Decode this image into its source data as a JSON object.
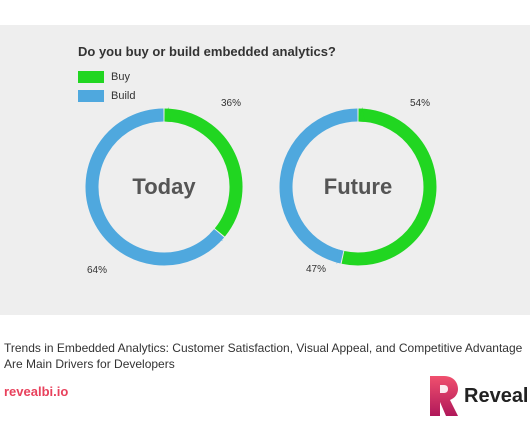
{
  "colors": {
    "buy": "#21d621",
    "build": "#4fa8de",
    "panel": "#eeeeee",
    "brand_accent": "#e8415c"
  },
  "chart_data": [
    {
      "type": "pie",
      "variant": "donut",
      "title": "Do you buy or build embedded analytics?",
      "center_label": "Today",
      "slices": [
        {
          "name": "Buy",
          "value": 36,
          "label": "36%"
        },
        {
          "name": "Build",
          "value": 64,
          "label": "64%"
        }
      ]
    },
    {
      "type": "pie",
      "variant": "donut",
      "title": "Do you buy or build embedded analytics?",
      "center_label": "Future",
      "slices": [
        {
          "name": "Buy",
          "value": 54,
          "label": "54%"
        },
        {
          "name": "Build",
          "value": 47,
          "label": "47%"
        }
      ]
    }
  ],
  "legend": [
    {
      "label": "Buy",
      "color": "#21d621"
    },
    {
      "label": "Build",
      "color": "#4fa8de"
    }
  ],
  "chart_title": "Do you buy or build embedded analytics?",
  "caption": "Trends in Embedded Analytics: Customer Satisfaction, Visual Appeal, and Competitive Advantage Are Main Drivers for Developers",
  "site_link": "revealbi.io",
  "brand": {
    "name": "Reveal",
    "icon": "reveal-logo-icon"
  }
}
